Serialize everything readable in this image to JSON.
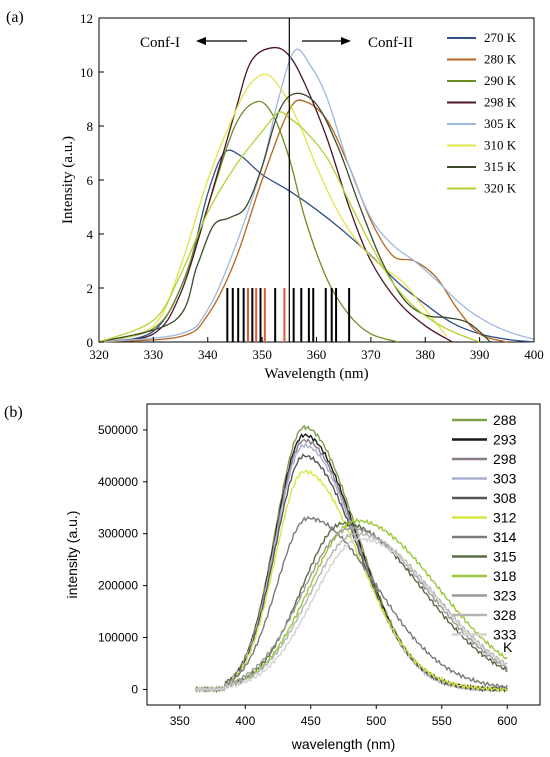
{
  "chart_data": [
    {
      "panel_label": "(a)",
      "type": "line",
      "xlabel": "Wavelength (nm)",
      "ylabel": "Intensity (a.u.)",
      "xlim": [
        320,
        400
      ],
      "ylim": [
        0,
        12
      ],
      "xticks": [
        320,
        330,
        340,
        350,
        360,
        370,
        380,
        390,
        400
      ],
      "yticks": [
        0,
        2,
        4,
        6,
        8,
        10,
        12
      ],
      "grid": false,
      "legend_position": "top-right",
      "divider_x": 355,
      "annotations": {
        "left": "Conf-I",
        "right": "Conf-II"
      },
      "series": [
        {
          "name": "270 K",
          "color": "#2f4f86",
          "x": [
            320,
            330,
            336,
            340,
            343,
            346,
            350,
            355,
            360,
            365,
            370,
            375,
            380,
            385,
            390,
            395,
            400
          ],
          "y": [
            0.0,
            0.4,
            2.5,
            5.5,
            7.0,
            6.9,
            6.2,
            5.6,
            4.9,
            4.1,
            3.2,
            2.2,
            1.4,
            0.7,
            0.3,
            0.1,
            0.0
          ]
        },
        {
          "name": "280 K",
          "color": "#b5651d",
          "x": [
            320,
            335,
            340,
            345,
            350,
            355,
            358,
            362,
            366,
            370,
            374,
            378,
            382,
            386,
            390,
            395
          ],
          "y": [
            0.0,
            0.2,
            1.0,
            3.0,
            6.0,
            8.6,
            8.9,
            8.2,
            6.5,
            4.5,
            3.2,
            3.0,
            2.4,
            1.2,
            0.3,
            0.0
          ]
        },
        {
          "name": "290 K",
          "color": "#6b8e23",
          "x": [
            320,
            330,
            335,
            340,
            345,
            349,
            352,
            355,
            358,
            362,
            366,
            370,
            375
          ],
          "y": [
            0.0,
            0.5,
            2.0,
            5.0,
            8.0,
            8.9,
            8.4,
            6.8,
            4.5,
            2.3,
            1.0,
            0.3,
            0.0
          ]
        },
        {
          "name": "298 K",
          "color": "#4a1528",
          "x": [
            320,
            330,
            335,
            340,
            345,
            348,
            352,
            355,
            358,
            362,
            366,
            370,
            375,
            380,
            385
          ],
          "y": [
            0.0,
            0.3,
            1.8,
            5.0,
            8.5,
            10.4,
            10.9,
            10.6,
            9.5,
            7.5,
            5.0,
            3.0,
            1.5,
            0.6,
            0.0
          ]
        },
        {
          "name": "305 K",
          "color": "#9fb8e0",
          "x": [
            320,
            335,
            340,
            345,
            350,
            353,
            356,
            359,
            362,
            366,
            370,
            374,
            378,
            382,
            386,
            390,
            395,
            400
          ],
          "y": [
            0.0,
            0.3,
            1.2,
            3.5,
            6.5,
            9.0,
            10.8,
            10.2,
            9.0,
            6.5,
            4.6,
            3.6,
            3.0,
            2.3,
            1.5,
            0.9,
            0.4,
            0.1
          ]
        },
        {
          "name": "310 K",
          "color": "#e3e34a",
          "x": [
            320,
            330,
            335,
            340,
            345,
            348,
            351,
            354,
            357,
            360,
            364,
            368,
            372,
            376,
            380,
            384
          ],
          "y": [
            0.0,
            0.6,
            2.8,
            6.0,
            8.5,
            9.6,
            9.9,
            9.2,
            8.0,
            6.5,
            4.8,
            3.6,
            2.8,
            2.2,
            1.2,
            0.2
          ]
        },
        {
          "name": "315 K",
          "color": "#3d4a2a",
          "x": [
            320,
            334,
            338,
            341,
            344,
            347,
            350,
            353,
            356,
            360,
            364,
            368,
            372,
            376,
            380,
            384,
            388,
            392
          ],
          "y": [
            0.0,
            0.8,
            2.8,
            4.3,
            4.6,
            5.0,
            6.5,
            8.5,
            9.2,
            8.8,
            7.2,
            5.0,
            3.0,
            1.6,
            1.0,
            0.9,
            0.7,
            0.0
          ]
        },
        {
          "name": "320 K",
          "color": "#b2d233",
          "x": [
            320,
            330,
            335,
            340,
            345,
            350,
            353,
            355,
            358,
            362,
            366,
            370,
            374,
            378,
            382,
            386,
            390
          ],
          "y": [
            0.0,
            0.8,
            2.5,
            4.8,
            6.5,
            7.8,
            8.5,
            8.3,
            7.8,
            6.8,
            5.2,
            3.6,
            2.2,
            1.3,
            0.7,
            0.3,
            0.0
          ]
        }
      ],
      "stick_lines": {
        "height": 2,
        "black": [
          343.6,
          344.6,
          345.6,
          346.6,
          348.2,
          349.7,
          352.4,
          355.8,
          357.2,
          358.6,
          359.4,
          361.7,
          362.8,
          363.6,
          366.0
        ],
        "red": [
          347.4,
          348.9,
          350.5,
          354.1
        ],
        "black_color": "#000000",
        "red_color": "#e05a3a"
      }
    },
    {
      "panel_label": "(b)",
      "type": "line",
      "xlabel": "wavelength (nm)",
      "ylabel": "intensity (a.u.)",
      "xlim": [
        325,
        625
      ],
      "ylim": [
        -30000,
        550000
      ],
      "xticks": [
        350,
        400,
        450,
        500,
        550,
        600
      ],
      "yticks": [
        0,
        100000,
        200000,
        300000,
        400000,
        500000
      ],
      "grid": false,
      "legend_position": "right",
      "legend_suffix": "K",
      "series": [
        {
          "name": "288",
          "color": "#7da04a",
          "peak": 445,
          "amplitude": 505000,
          "width_left": 22,
          "width_right": 40
        },
        {
          "name": "293",
          "color": "#1a1a1a",
          "peak": 445,
          "amplitude": 490000,
          "width_left": 22,
          "width_right": 40
        },
        {
          "name": "298",
          "color": "#8a7a8a",
          "peak": 445,
          "amplitude": 480000,
          "width_left": 22,
          "width_right": 40
        },
        {
          "name": "303",
          "color": "#aab0d0",
          "peak": 445,
          "amplitude": 470000,
          "width_left": 22,
          "width_right": 40
        },
        {
          "name": "308",
          "color": "#555555",
          "peak": 445,
          "amplitude": 450000,
          "width_left": 22,
          "width_right": 41
        },
        {
          "name": "312",
          "color": "#d8e640",
          "peak": 445,
          "amplitude": 420000,
          "width_left": 22,
          "width_right": 42
        },
        {
          "name": "314",
          "color": "#7a7a7a",
          "peak": 448,
          "amplitude": 330000,
          "width_left": 24,
          "width_right": 52
        },
        {
          "name": "315",
          "color": "#5a6b45",
          "peak": 475,
          "amplitude": 320000,
          "width_left": 32,
          "width_right": 60
        },
        {
          "name": "318",
          "color": "#9ac83a",
          "peak": 485,
          "amplitude": 325000,
          "width_left": 36,
          "width_right": 62
        },
        {
          "name": "323",
          "color": "#9a9a9a",
          "peak": 480,
          "amplitude": 310000,
          "width_left": 36,
          "width_right": 60
        },
        {
          "name": "328",
          "color": "#b5b5b5",
          "peak": 485,
          "amplitude": 300000,
          "width_left": 36,
          "width_right": 60
        },
        {
          "name": "333",
          "color": "#d3d3d3",
          "peak": 488,
          "amplitude": 290000,
          "width_left": 36,
          "width_right": 58
        }
      ]
    }
  ]
}
